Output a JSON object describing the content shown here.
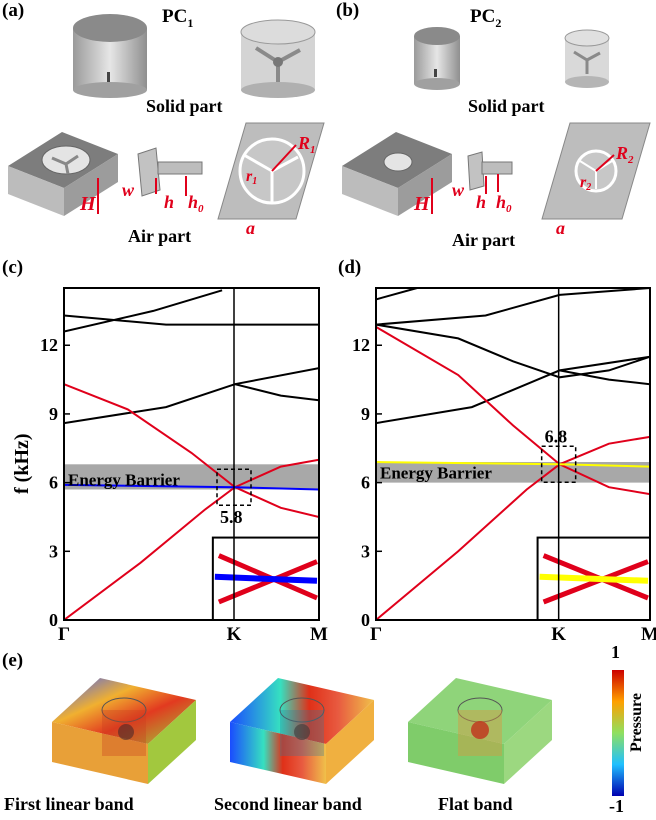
{
  "panels": {
    "a": "(a)",
    "b": "(b)",
    "c": "(c)",
    "d": "(d)",
    "e": "(e)"
  },
  "pc1": {
    "title_main": "PC",
    "title_sub": "1",
    "solid": "Solid part",
    "air": "Air part"
  },
  "pc2": {
    "title_main": "PC",
    "title_sub": "2",
    "solid": "Solid part",
    "air": "Air part"
  },
  "geom_labels": {
    "H": "H",
    "w": "w",
    "h": "h",
    "h0_main": "h",
    "h0_sub": "0",
    "R1_main": "R",
    "R1_sub": "1",
    "r1_main": "r",
    "r1_sub": "1",
    "R2_main": "R",
    "R2_sub": "2",
    "r2_main": "r",
    "r2_sub": "2",
    "a": "a"
  },
  "chart_data": [
    {
      "type": "line",
      "panel": "(c)",
      "ylabel": "f (kHz)",
      "ylim": [
        0,
        14.5
      ],
      "yticks": [
        0,
        3,
        6,
        9,
        12
      ],
      "xticks": [
        "Γ",
        "K",
        "M"
      ],
      "band_gap_label": "Energy Barrier",
      "band_gap_range": [
        5.7,
        6.8
      ],
      "dirac_label": "5.8",
      "dirac_freq": 5.8,
      "series": [
        {
          "color": "#000000",
          "points": [
            [
              0,
              13.3
            ],
            [
              0.4,
              12.9
            ],
            [
              1,
              12.9
            ]
          ]
        },
        {
          "color": "#000000",
          "points": [
            [
              0,
              12.6
            ],
            [
              0.35,
              13.5
            ],
            [
              0.62,
              14.4
            ]
          ]
        },
        {
          "color": "#000000",
          "points": [
            [
              0,
              8.6
            ],
            [
              0.4,
              9.3
            ],
            [
              0.67,
              10.3
            ],
            [
              1,
              11.0
            ]
          ]
        },
        {
          "color": "#000000",
          "points": [
            [
              0.67,
              10.3
            ],
            [
              0.85,
              9.8
            ],
            [
              1,
              9.6
            ]
          ]
        },
        {
          "color": "#e0001b",
          "points": [
            [
              0,
              10.3
            ],
            [
              0.25,
              9.2
            ],
            [
              0.5,
              7.3
            ],
            [
              0.67,
              5.8
            ],
            [
              0.85,
              4.9
            ],
            [
              1,
              4.5
            ]
          ]
        },
        {
          "color": "#e0001b",
          "points": [
            [
              0,
              0
            ],
            [
              0.3,
              2.5
            ],
            [
              0.55,
              4.8
            ],
            [
              0.67,
              5.8
            ],
            [
              0.85,
              6.7
            ],
            [
              1,
              7.0
            ]
          ]
        },
        {
          "color": "#0000ff",
          "points": [
            [
              0,
              5.9
            ],
            [
              0.67,
              5.8
            ],
            [
              1,
              5.7
            ]
          ]
        }
      ]
    },
    {
      "type": "line",
      "panel": "(d)",
      "ylabel": "",
      "ylim": [
        0,
        14.5
      ],
      "yticks": [
        0,
        3,
        6,
        9,
        12
      ],
      "xticks": [
        "Γ",
        "K",
        "M"
      ],
      "band_gap_label": "Energy Barrier",
      "band_gap_range": [
        6.0,
        6.9
      ],
      "dirac_label": "6.8",
      "dirac_freq": 6.8,
      "series": [
        {
          "color": "#000000",
          "points": [
            [
              0,
              14.0
            ],
            [
              0.15,
              14.5
            ]
          ]
        },
        {
          "color": "#000000",
          "points": [
            [
              0,
              12.9
            ],
            [
              0.3,
              12.3
            ],
            [
              0.5,
              11.3
            ],
            [
              0.67,
              10.6
            ],
            [
              0.85,
              10.9
            ],
            [
              1,
              11.5
            ]
          ]
        },
        {
          "color": "#000000",
          "points": [
            [
              0,
              12.9
            ],
            [
              0.4,
              13.3
            ],
            [
              0.67,
              14.2
            ],
            [
              1,
              14.5
            ]
          ]
        },
        {
          "color": "#000000",
          "points": [
            [
              0,
              8.6
            ],
            [
              0.35,
              9.3
            ],
            [
              0.67,
              10.9
            ],
            [
              1,
              11.5
            ]
          ]
        },
        {
          "color": "#000000",
          "points": [
            [
              0.67,
              10.9
            ],
            [
              0.85,
              10.5
            ],
            [
              1,
              10.3
            ]
          ]
        },
        {
          "color": "#e0001b",
          "points": [
            [
              0,
              12.8
            ],
            [
              0.3,
              10.7
            ],
            [
              0.5,
              8.5
            ],
            [
              0.67,
              6.8
            ],
            [
              0.85,
              5.8
            ],
            [
              1,
              5.5
            ]
          ]
        },
        {
          "color": "#e0001b",
          "points": [
            [
              0,
              0
            ],
            [
              0.3,
              3.0
            ],
            [
              0.55,
              5.7
            ],
            [
              0.67,
              6.8
            ],
            [
              0.85,
              7.7
            ],
            [
              1,
              8.0
            ]
          ]
        },
        {
          "color": "#ffff00",
          "points": [
            [
              0,
              6.9
            ],
            [
              0.67,
              6.8
            ],
            [
              1,
              6.7
            ]
          ]
        }
      ]
    }
  ],
  "field_maps": {
    "captions": [
      "First linear band",
      "Second linear band",
      "Flat band"
    ],
    "colorbar_label": "Pressure",
    "colorbar_max": "1",
    "colorbar_min": "-1"
  }
}
